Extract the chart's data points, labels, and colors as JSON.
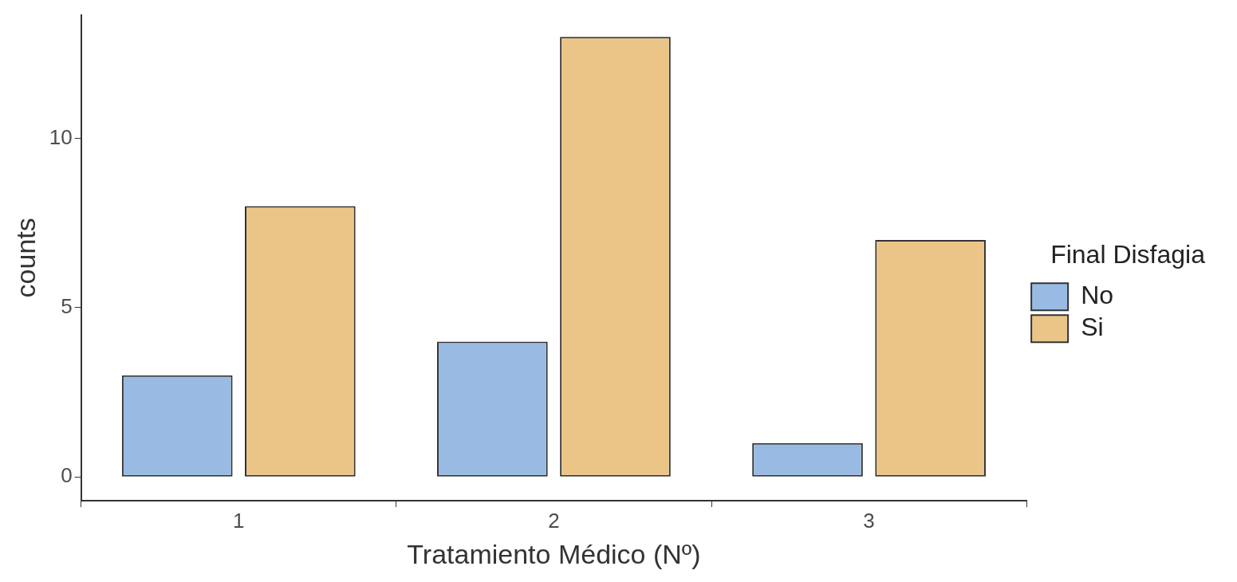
{
  "chart_data": {
    "type": "bar",
    "xlabel": "Tratamiento Médico (Nº)",
    "ylabel": "counts",
    "legend_title": "Final Disfagia",
    "categories": [
      "1",
      "2",
      "3"
    ],
    "series": [
      {
        "name": "No",
        "color": "#99bbe3",
        "values": [
          3,
          4,
          1
        ]
      },
      {
        "name": "Si",
        "color": "#ebc588",
        "values": [
          8,
          13,
          7
        ]
      }
    ],
    "ylim": [
      -0.7,
      13.65
    ],
    "yticks": [
      0,
      5,
      10
    ],
    "grid": false,
    "legend": "right"
  }
}
